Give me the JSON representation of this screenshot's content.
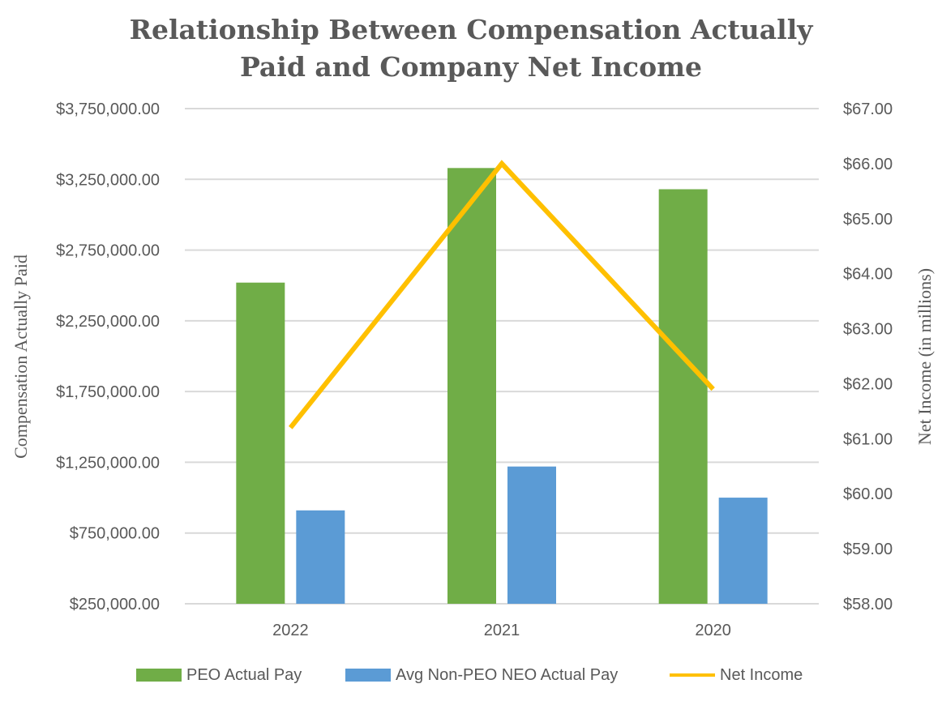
{
  "chart_data": {
    "type": "bar",
    "title_lines": [
      "Relationship Between Compensation Actually",
      "Paid and Company Net Income"
    ],
    "categories": [
      "2022",
      "2021",
      "2020"
    ],
    "series": [
      {
        "name": "PEO Actual Pay",
        "type": "bar",
        "axis": "left",
        "color": "#70AD47",
        "values": [
          2520000,
          3330000,
          3180000
        ]
      },
      {
        "name": "Avg Non-PEO NEO Actual Pay",
        "type": "bar",
        "axis": "left",
        "color": "#5B9BD5",
        "values": [
          910000,
          1220000,
          1000000
        ]
      },
      {
        "name": "Net Income",
        "type": "line",
        "axis": "right",
        "color": "#FFC000",
        "values": [
          61.2,
          66.0,
          61.9
        ]
      }
    ],
    "left_axis": {
      "label": "Compensation Actually Paid",
      "ylim": [
        250000,
        3750000
      ],
      "ticks": [
        250000,
        750000,
        1250000,
        1750000,
        2250000,
        2750000,
        3250000,
        3750000
      ],
      "tick_labels": [
        "$250,000.00",
        "$750,000.00",
        "$1,250,000.00",
        "$1,750,000.00",
        "$2,250,000.00",
        "$2,750,000.00",
        "$3,250,000.00",
        "$3,750,000.00"
      ]
    },
    "right_axis": {
      "label": "Net Income (in millions)",
      "ylim": [
        58,
        67
      ],
      "ticks": [
        58,
        59,
        60,
        61,
        62,
        63,
        64,
        65,
        66,
        67
      ],
      "tick_labels": [
        "$58.00",
        "$59.00",
        "$60.00",
        "$61.00",
        "$62.00",
        "$63.00",
        "$64.00",
        "$65.00",
        "$66.00",
        "$67.00"
      ]
    },
    "grid": true,
    "legend_position": "bottom"
  }
}
